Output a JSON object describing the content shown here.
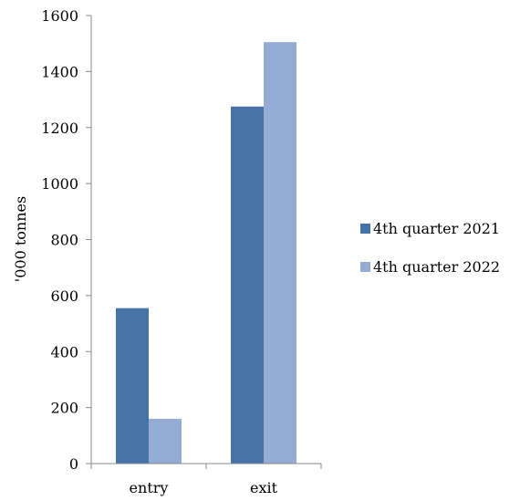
{
  "chart_data": {
    "type": "bar",
    "categories": [
      "entry",
      "exit"
    ],
    "series": [
      {
        "name": "4th quarter 2021",
        "values": [
          555,
          1275
        ],
        "color": "#4673a8"
      },
      {
        "name": "4th quarter 2022",
        "values": [
          160,
          1505
        ],
        "color": "#95acd4"
      }
    ],
    "ylabel": "'000 tonnes",
    "ylim": [
      0,
      1600
    ],
    "yticks": [
      0,
      200,
      400,
      600,
      800,
      1000,
      1200,
      1400,
      1600
    ],
    "grid": false,
    "legend_position": "right"
  }
}
